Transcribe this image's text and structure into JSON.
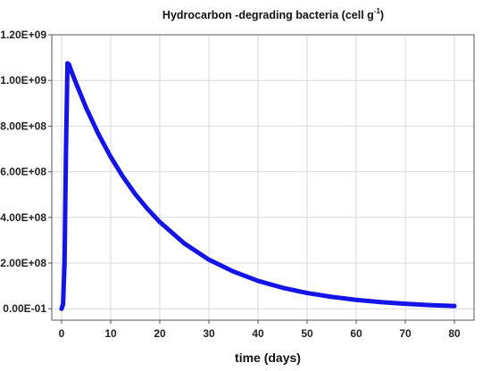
{
  "chart_data": {
    "type": "line",
    "title": "Hydrocarbon -degrading bacteria (cell g",
    "title_superscript": "-1",
    "title_close": ")",
    "xlabel": "time (days)",
    "ylabel": "",
    "xlim": [
      -2,
      84
    ],
    "ylim": [
      -50000000.0,
      1200000000.0
    ],
    "x_ticks": [
      0,
      10,
      20,
      30,
      40,
      50,
      60,
      70,
      80
    ],
    "x_tick_labels": [
      "0",
      "10",
      "20",
      "30",
      "40",
      "50",
      "60",
      "70",
      "80"
    ],
    "y_ticks": [
      0,
      200000000,
      400000000,
      600000000,
      800000000,
      1000000000,
      1200000000
    ],
    "y_tick_labels": [
      "0.00E-01",
      "2.00E+08",
      "4.00E+08",
      "6.00E+08",
      "8.00E+08",
      "1.00E+09",
      "1.20E+09"
    ],
    "grid": true,
    "line_color": "#1414e6",
    "series": [
      {
        "name": "",
        "x": [
          0,
          0.3,
          0.6,
          0.9,
          1.2,
          1.5,
          2,
          3,
          5,
          7.5,
          10,
          12.5,
          15,
          17.5,
          20,
          25,
          30,
          35,
          40,
          45,
          50,
          55,
          60,
          65,
          70,
          75,
          80
        ],
        "y": [
          0,
          20000000,
          200000000,
          700000000,
          1075000000,
          1070000000,
          1040000000,
          985000000,
          880000000,
          765000000,
          665000000,
          578000000,
          502000000,
          437000000,
          380000000,
          286000000,
          215000000,
          163000000,
          122000000,
          92000000,
          69000000,
          52000000,
          39000000,
          29000000,
          22000000,
          16000000,
          12000000
        ]
      }
    ]
  }
}
